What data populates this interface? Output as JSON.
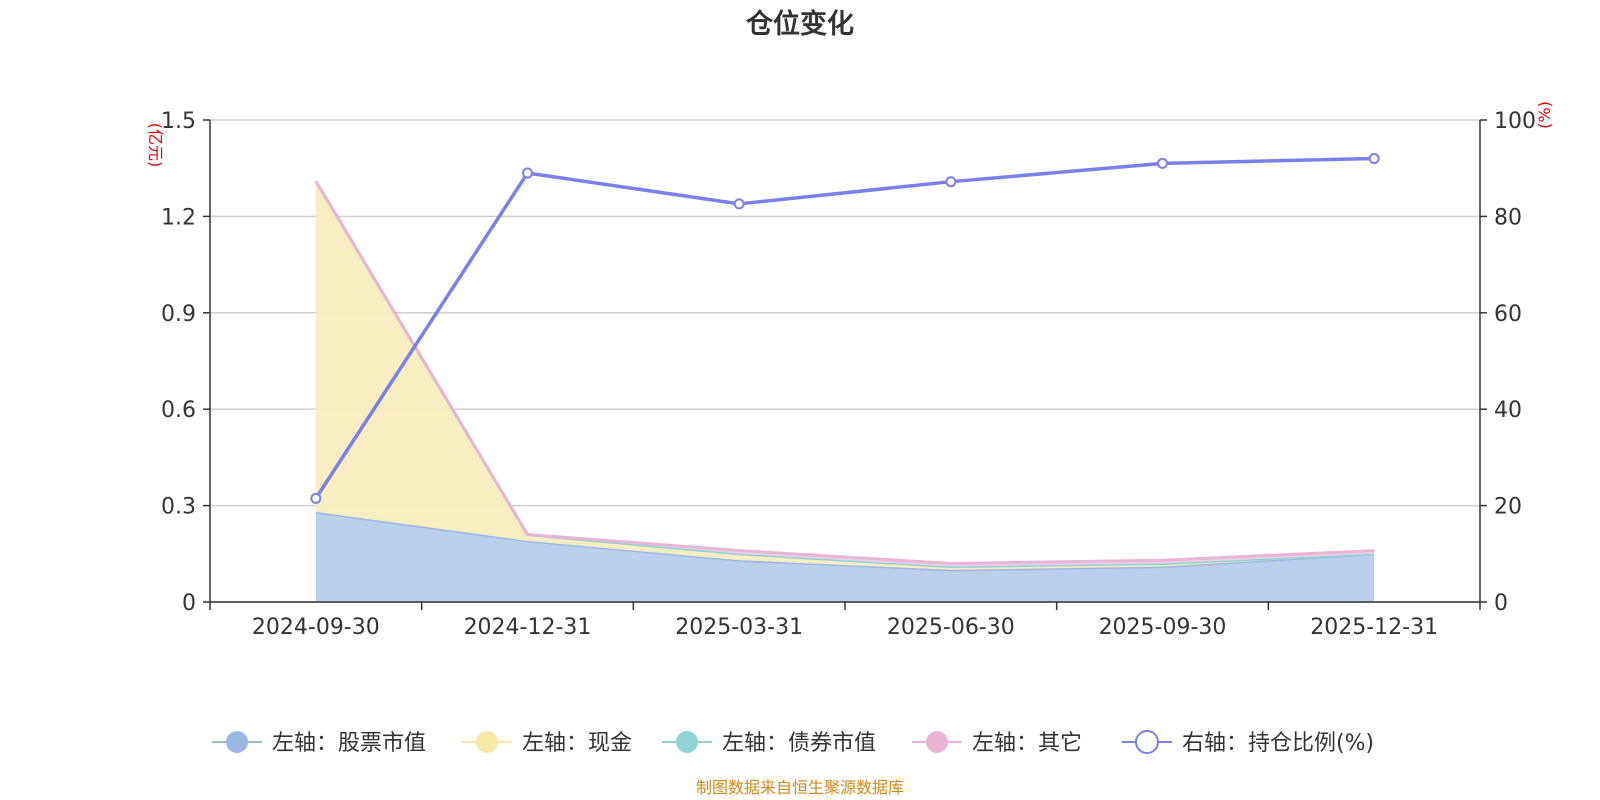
{
  "chart_data": {
    "type": "area",
    "title": "仓位变化",
    "categories": [
      "2024-09-30",
      "2024-12-31",
      "2025-03-31",
      "2025-06-30",
      "2025-09-30",
      "2025-12-31"
    ],
    "left_axis": {
      "unit": "(亿元)",
      "ylim": [
        0,
        1.5
      ],
      "ticks": [
        "0",
        "0.3",
        "0.6",
        "0.9",
        "1.2",
        "1.5"
      ]
    },
    "right_axis": {
      "unit": "(%)",
      "ylim": [
        0,
        100
      ],
      "ticks": [
        "0",
        "20",
        "40",
        "60",
        "80",
        "100"
      ]
    },
    "grid": true,
    "legend_position": "bottom",
    "series": [
      {
        "name": "左轴：股票市值",
        "axis": "left",
        "kind": "stacked-area",
        "color": "#9bb8e2",
        "fill": "#b7cdec",
        "values": [
          0.28,
          0.19,
          0.13,
          0.1,
          0.11,
          0.15
        ]
      },
      {
        "name": "左轴：现金",
        "axis": "left",
        "kind": "stacked-area",
        "color": "#f8e8a8",
        "fill": "#f9edbf",
        "values": [
          1.03,
          0.02,
          0.02,
          0.01,
          0.01,
          0.0
        ]
      },
      {
        "name": "左轴：债券市值",
        "axis": "left",
        "kind": "stacked-area",
        "color": "#8fd3d5",
        "fill": "#bfe6e7",
        "values": [
          0,
          0,
          0,
          0,
          0,
          0
        ]
      },
      {
        "name": "左轴：其它",
        "axis": "left",
        "kind": "stacked-area",
        "color": "#e8b4d8",
        "fill": "#f1cfe6",
        "values": [
          0.0,
          0.0,
          0.01,
          0.01,
          0.01,
          0.01
        ]
      },
      {
        "name": "右轴：持仓比例(%)",
        "axis": "right",
        "kind": "line",
        "color": "#7b7fe8",
        "values": [
          21.5,
          89.0,
          82.6,
          87.2,
          91.0,
          92.0
        ]
      }
    ]
  },
  "footer": {
    "source": "制图数据来自恒生聚源数据库"
  }
}
